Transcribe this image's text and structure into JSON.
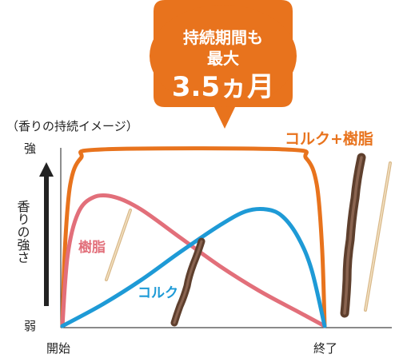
{
  "callout": {
    "line1": "持続期間も",
    "line2": "最大",
    "line3": "3.5ヵ月",
    "color": "#e8731d"
  },
  "chart_data": {
    "type": "line",
    "caption": "（香りの持続イメージ）",
    "y_axis": {
      "label": "香りの強さ",
      "top": "強",
      "bottom": "弱"
    },
    "x_axis": {
      "start": "開始",
      "end": "終了"
    },
    "y_range": [
      0,
      1
    ],
    "x_range": [
      0,
      1
    ],
    "series": [
      {
        "name": "コルク+樹脂",
        "color": "#e8731d",
        "points": [
          [
            0,
            0
          ],
          [
            0.01,
            0.45
          ],
          [
            0.03,
            0.8
          ],
          [
            0.07,
            0.95
          ],
          [
            0.15,
            1
          ],
          [
            0.85,
            1
          ],
          [
            0.93,
            0.95
          ],
          [
            0.97,
            0.8
          ],
          [
            0.99,
            0.45
          ],
          [
            1,
            0
          ]
        ]
      },
      {
        "name": "樹脂",
        "color": "#e26f7a",
        "points": [
          [
            0,
            0
          ],
          [
            0.02,
            0.4
          ],
          [
            0.06,
            0.64
          ],
          [
            0.12,
            0.73
          ],
          [
            0.2,
            0.73
          ],
          [
            0.3,
            0.66
          ],
          [
            0.45,
            0.5
          ],
          [
            0.6,
            0.34
          ],
          [
            0.75,
            0.2
          ],
          [
            0.9,
            0.08
          ],
          [
            1,
            0
          ]
        ]
      },
      {
        "name": "コルク",
        "color": "#1e9ad6",
        "points": [
          [
            0,
            0
          ],
          [
            0.15,
            0.12
          ],
          [
            0.3,
            0.26
          ],
          [
            0.45,
            0.42
          ],
          [
            0.6,
            0.57
          ],
          [
            0.7,
            0.65
          ],
          [
            0.78,
            0.66
          ],
          [
            0.84,
            0.62
          ],
          [
            0.9,
            0.5
          ],
          [
            0.95,
            0.32
          ],
          [
            1,
            0
          ]
        ]
      }
    ],
    "grid": false,
    "legend": "inline labels"
  }
}
